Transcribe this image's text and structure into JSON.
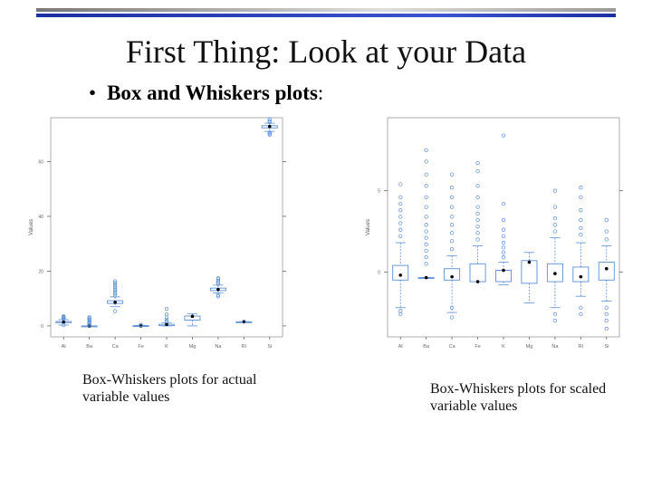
{
  "slide": {
    "title": "First Thing: Look at your Data",
    "bullet_bold": "Box and Whiskers plots",
    "bullet_rest": ":",
    "caption_left": "Box-Whiskers plots for actual variable values",
    "caption_right": "Box-Whiskers plots for scaled variable values"
  },
  "colors": {
    "box": "#5b8fd6",
    "median": "#000000",
    "frame": "#999999",
    "accent_bar": "#2a3fb8"
  },
  "chart_data": [
    {
      "type": "box",
      "title": "",
      "xlabel": "",
      "ylabel": "Values",
      "categories": [
        "Al",
        "Ba",
        "Ca",
        "Fe",
        "K",
        "Mg",
        "Na",
        "RI",
        "Si"
      ],
      "yticks": [
        0,
        20,
        40,
        60
      ],
      "yticklabels": [
        "0",
        "20",
        "40",
        "60"
      ],
      "ylim": [
        -4,
        76
      ],
      "boxes": [
        {
          "name": "Al",
          "low": 0.3,
          "q1": 1.2,
          "median": 1.4,
          "q3": 1.6,
          "high": 2.3,
          "outliers": [
            0.3,
            2.6,
            2.9,
            3.1,
            3.3,
            3.5
          ]
        },
        {
          "name": "Ba",
          "low": 0,
          "q1": 0,
          "median": 0,
          "q3": 0,
          "high": 0,
          "outliers": [
            0.4,
            0.8,
            1.2,
            1.6,
            2.0,
            2.4,
            2.8,
            3.2
          ]
        },
        {
          "name": "Ca",
          "low": 7.0,
          "q1": 8.2,
          "median": 8.6,
          "q3": 9.2,
          "high": 10.6,
          "outliers": [
            5.4,
            11.0,
            11.7,
            12.3,
            13.0,
            13.6,
            14.3,
            15.0,
            15.7,
            16.3
          ]
        },
        {
          "name": "Fe",
          "low": 0,
          "q1": 0,
          "median": 0,
          "q3": 0.1,
          "high": 0.2,
          "outliers": [
            0.3,
            0.4
          ]
        },
        {
          "name": "K",
          "low": 0,
          "q1": 0.1,
          "median": 0.6,
          "q3": 0.6,
          "high": 1.2,
          "outliers": [
            1.6,
            2.2,
            3.0,
            4.2,
            6.2
          ]
        },
        {
          "name": "Mg",
          "low": 0,
          "q1": 2.1,
          "median": 3.5,
          "q3": 3.6,
          "high": 4.5,
          "outliers": []
        },
        {
          "name": "Na",
          "low": 12.0,
          "q1": 12.9,
          "median": 13.3,
          "q3": 13.8,
          "high": 14.9,
          "outliers": [
            10.8,
            11.2,
            15.3,
            15.8,
            16.4,
            17.0,
            17.4
          ]
        },
        {
          "name": "RI",
          "low": 1.51,
          "q1": 1.516,
          "median": 1.518,
          "q3": 1.519,
          "high": 1.523,
          "outliers": [
            1.53
          ]
        },
        {
          "name": "Si",
          "low": 71.0,
          "q1": 72.3,
          "median": 72.8,
          "q3": 73.1,
          "high": 74.0,
          "outliers": [
            69.8,
            70.2,
            70.6,
            74.4,
            74.8,
            75.4
          ]
        }
      ]
    },
    {
      "type": "box",
      "title": "",
      "xlabel": "",
      "ylabel": "Values",
      "categories": [
        "Al",
        "Ba",
        "Ca",
        "Fe",
        "K",
        "Mg",
        "Na",
        "RI",
        "Si"
      ],
      "yticks": [
        0,
        5
      ],
      "yticklabels": [
        "0",
        "5"
      ],
      "ylim": [
        -4,
        9.5
      ],
      "boxes": [
        {
          "name": "Al",
          "low": -2.2,
          "q1": -0.5,
          "median": -0.2,
          "q3": 0.4,
          "high": 1.8,
          "outliers": [
            -2.6,
            -2.4,
            2.2,
            2.6,
            3.0,
            3.4,
            3.8,
            4.2,
            4.6,
            5.4
          ]
        },
        {
          "name": "Ba",
          "low": -0.35,
          "q1": -0.35,
          "median": -0.35,
          "q3": -0.35,
          "high": -0.35,
          "outliers": [
            0.5,
            0.9,
            1.3,
            1.7,
            2.1,
            2.5,
            2.9,
            3.4,
            4.0,
            4.6,
            5.3,
            6.0,
            6.8,
            7.5
          ]
        },
        {
          "name": "Ca",
          "low": -2.5,
          "q1": -0.5,
          "median": -0.3,
          "q3": 0.2,
          "high": 1.0,
          "outliers": [
            -2.8,
            -2.2,
            1.4,
            1.9,
            2.4,
            2.9,
            3.4,
            4.0,
            4.6,
            5.2,
            6.0
          ]
        },
        {
          "name": "Fe",
          "low": -0.6,
          "q1": -0.6,
          "median": -0.6,
          "q3": 0.5,
          "high": 1.6,
          "outliers": [
            2.0,
            2.4,
            2.8,
            3.2,
            3.6,
            4.0,
            4.6,
            5.3,
            6.2,
            6.7
          ]
        },
        {
          "name": "K",
          "low": -0.8,
          "q1": -0.6,
          "median": 0.1,
          "q3": 0.1,
          "high": 0.6,
          "outliers": [
            0.9,
            1.2,
            1.5,
            1.8,
            2.2,
            2.6,
            3.2,
            4.2,
            8.4
          ]
        },
        {
          "name": "Mg",
          "low": -1.9,
          "q1": -0.7,
          "median": 0.6,
          "q3": 0.7,
          "high": 1.2,
          "outliers": []
        },
        {
          "name": "Na",
          "low": -2.2,
          "q1": -0.6,
          "median": -0.1,
          "q3": 0.5,
          "high": 2.1,
          "outliers": [
            -3.0,
            -2.6,
            2.5,
            2.9,
            3.3,
            4.0,
            5.0
          ]
        },
        {
          "name": "RI",
          "low": -1.5,
          "q1": -0.6,
          "median": -0.3,
          "q3": 0.3,
          "high": 1.8,
          "outliers": [
            -2.6,
            -2.2,
            2.3,
            2.7,
            3.2,
            3.8,
            4.6,
            5.2
          ]
        },
        {
          "name": "Si",
          "low": -1.8,
          "q1": -0.5,
          "median": 0.2,
          "q3": 0.6,
          "high": 1.6,
          "outliers": [
            -3.5,
            -3.0,
            -2.6,
            -2.2,
            2.0,
            2.5,
            3.2
          ]
        }
      ]
    }
  ]
}
